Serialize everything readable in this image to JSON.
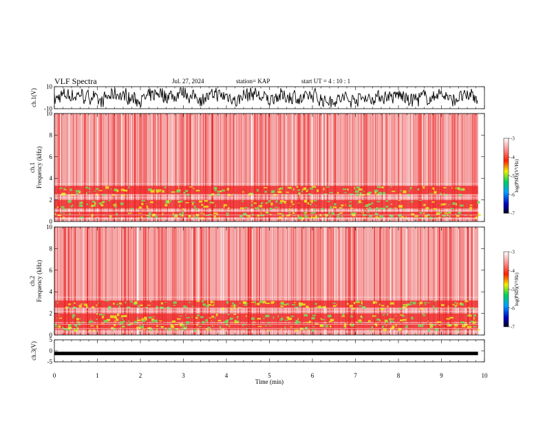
{
  "header": {
    "title": "VLF Spectra",
    "date": "Jul. 27, 2024",
    "station": "station= KAP",
    "start": "start UT =   4 : 10 : 1"
  },
  "colors": {
    "background": "#ffffff",
    "axis": "#000000",
    "waveform": "#000000",
    "spectrogram_base": "#f4a8a8",
    "spectrogram_hot": "#ee2020",
    "spectrogram_band": "#e8e820",
    "spectrogram_band_green": "#70e060"
  },
  "chart_data": [
    {
      "type": "line",
      "name": "ch1-waveform",
      "ylabel": "ch.1(V)",
      "ylim": [
        -10,
        10
      ],
      "y_ticks": [
        "10",
        "-10"
      ],
      "xlim": [
        0,
        9.85
      ],
      "description_level": "noise"
    },
    {
      "type": "heatmap",
      "name": "ch1-spectrogram",
      "ylabel": "ch.1 Frequency (kHz)",
      "ylabel_line1": "ch.1",
      "ylabel_line2": "Frequency (kHz)",
      "ylim": [
        0,
        10
      ],
      "y_ticks": [
        "0",
        "2",
        "4",
        "6",
        "8",
        "10"
      ],
      "bands_khz": [
        [
          0.4,
          0.9
        ],
        [
          1.2,
          2.0
        ],
        [
          2.5,
          3.3
        ]
      ],
      "colorbar": {
        "label": "log(PSD)(V²/Hz)",
        "range": [
          -7,
          -3
        ],
        "ticks": [
          "-3",
          "-4",
          "-5",
          "-6",
          "-7"
        ]
      }
    },
    {
      "type": "heatmap",
      "name": "ch2-spectrogram",
      "ylabel": "ch.2 Frequency (kHz)",
      "ylabel_line1": "ch.2",
      "ylabel_line2": "Frequency (kHz)",
      "ylim": [
        0,
        10
      ],
      "y_ticks": [
        "0",
        "2",
        "4",
        "6",
        "8",
        "10"
      ],
      "bands_khz": [
        [
          0.5,
          1.1
        ],
        [
          1.2,
          2.0
        ],
        [
          2.5,
          3.2
        ]
      ],
      "colorbar": {
        "label": "log(PSD)(V²/Hz)",
        "range": [
          -7,
          -3
        ],
        "ticks": [
          "-3",
          "-4",
          "-5",
          "-6",
          "-7"
        ]
      }
    },
    {
      "type": "line",
      "name": "ch3-waveform",
      "ylabel": "ch.3(V)",
      "ylim": [
        -5,
        5
      ],
      "y_ticks": [
        "5",
        "0",
        "-5"
      ],
      "level_v": -1.2
    }
  ],
  "x_axis": {
    "label": "Time (min)",
    "range": [
      0,
      10
    ],
    "ticks": [
      "0",
      "1",
      "2",
      "3",
      "4",
      "5",
      "6",
      "7",
      "8",
      "9",
      "10"
    ]
  }
}
